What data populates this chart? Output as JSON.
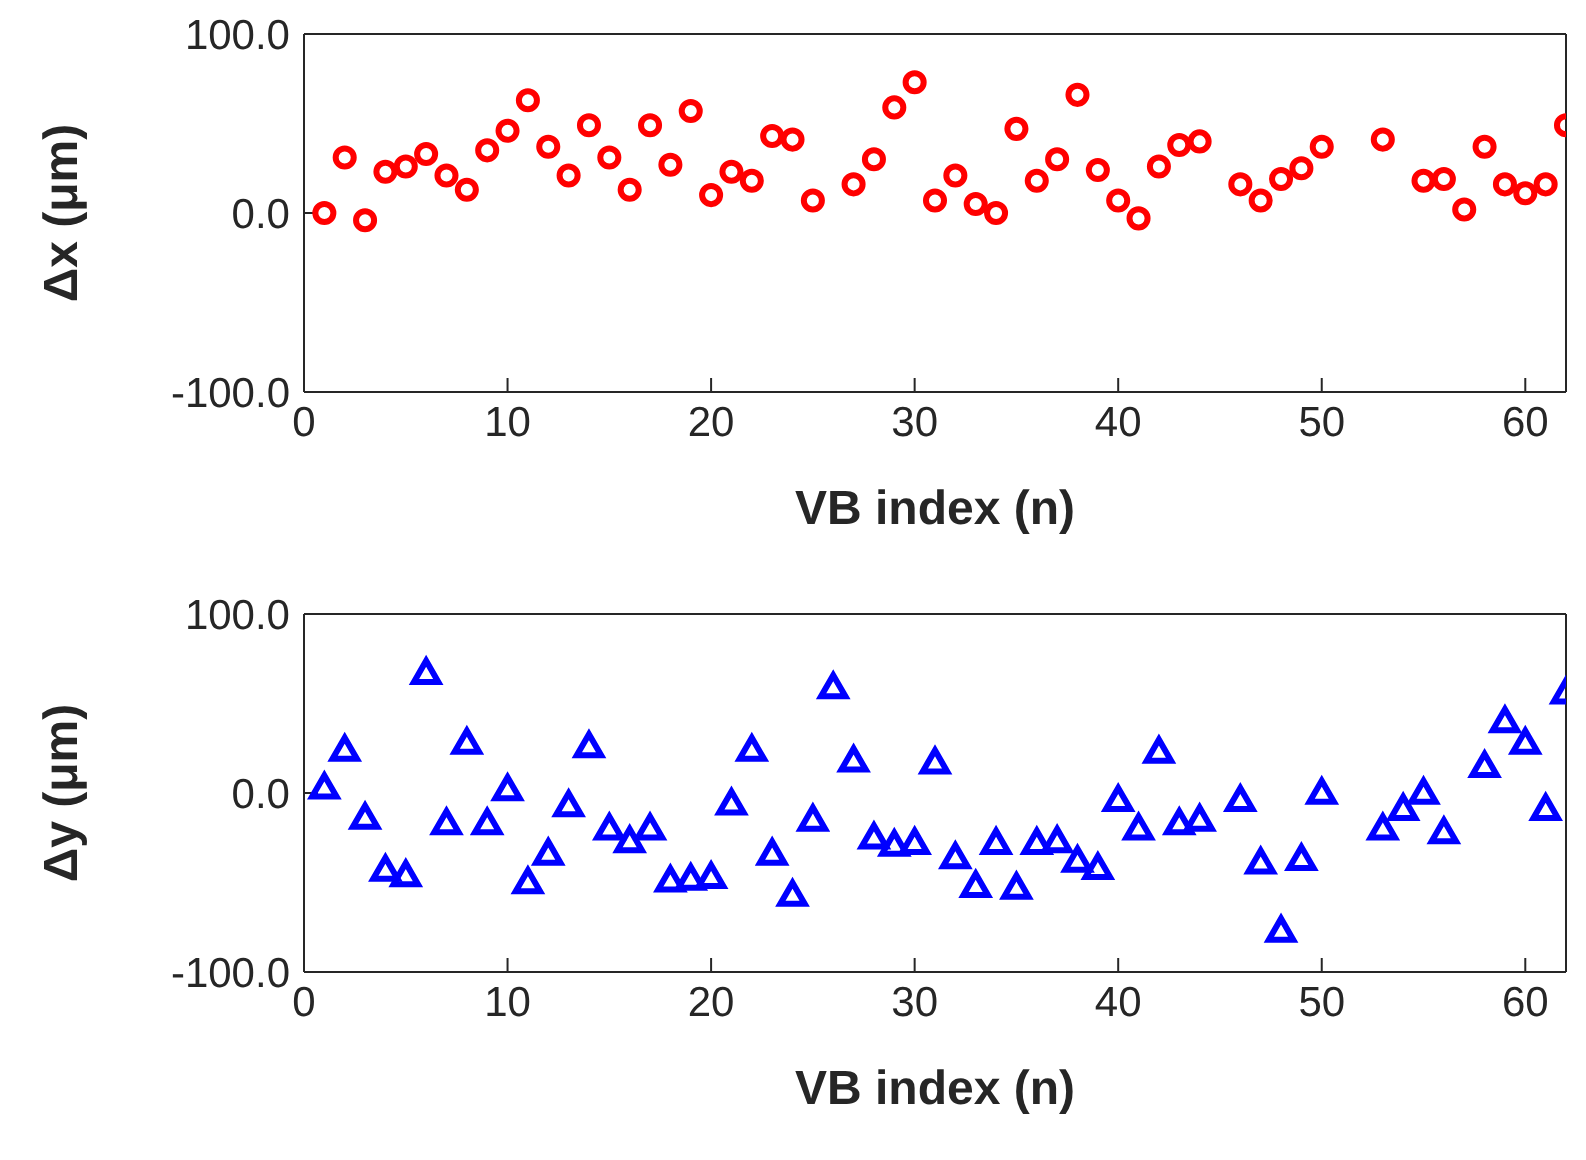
{
  "chart_data": [
    {
      "type": "scatter",
      "xlabel": "VB index (n)",
      "ylabel": "Δx (μm)",
      "xlim": [
        0,
        62
      ],
      "xticks": [
        0,
        10,
        20,
        30,
        40,
        50,
        60
      ],
      "ylim": [
        -100,
        100
      ],
      "yticks": [
        {
          "value": -100,
          "label": "-100.0"
        },
        {
          "value": 0,
          "label": "0.0"
        },
        {
          "value": 100,
          "label": "100.0"
        }
      ],
      "marker": "circle",
      "grid": false,
      "legend": false,
      "series": [
        {
          "color": "#ff0000",
          "x": [
            1,
            2,
            3,
            4,
            5,
            6,
            7,
            8,
            9,
            10,
            11,
            12,
            13,
            14,
            15,
            16,
            17,
            18,
            19,
            20,
            21,
            22,
            23,
            24,
            25,
            27,
            28,
            29,
            30,
            31,
            32,
            33,
            34,
            35,
            36,
            37,
            38,
            39,
            40,
            41,
            42,
            43,
            44,
            46,
            47,
            48,
            49,
            50,
            53,
            55,
            56,
            57,
            58,
            59,
            60,
            61,
            62
          ],
          "values": [
            0,
            31,
            -4,
            23,
            26,
            33,
            21,
            13,
            35,
            46,
            63,
            37,
            21,
            49,
            31,
            13,
            49,
            27,
            57,
            10,
            23,
            18,
            43,
            41,
            7,
            16,
            30,
            59,
            73,
            7,
            21,
            5,
            0,
            47,
            18,
            30,
            66,
            24,
            7,
            -3,
            26,
            38,
            40,
            16,
            7,
            19,
            25,
            37,
            41,
            18,
            19,
            2,
            37,
            16,
            11,
            16,
            49
          ]
        }
      ]
    },
    {
      "type": "scatter",
      "xlabel": "VB index (n)",
      "ylabel": "Δy (μm)",
      "xlim": [
        0,
        62
      ],
      "xticks": [
        0,
        10,
        20,
        30,
        40,
        50,
        60
      ],
      "ylim": [
        -100,
        100
      ],
      "yticks": [
        {
          "value": -100,
          "label": "-100.0"
        },
        {
          "value": 0,
          "label": "0.0"
        },
        {
          "value": 100,
          "label": "100.0"
        }
      ],
      "marker": "triangle",
      "grid": false,
      "legend": false,
      "series": [
        {
          "color": "#0000ff",
          "x": [
            1,
            2,
            3,
            4,
            5,
            6,
            7,
            8,
            9,
            10,
            11,
            12,
            13,
            14,
            15,
            16,
            17,
            18,
            19,
            20,
            21,
            22,
            23,
            24,
            25,
            26,
            27,
            28,
            29,
            30,
            31,
            32,
            33,
            34,
            35,
            36,
            37,
            38,
            39,
            40,
            41,
            42,
            43,
            44,
            46,
            47,
            48,
            49,
            50,
            53,
            54,
            55,
            56,
            58,
            59,
            60,
            61,
            62
          ],
          "values": [
            2,
            23,
            -15,
            -44,
            -47,
            66,
            -18,
            27,
            -18,
            1,
            -51,
            -35,
            -8,
            25,
            -21,
            -28,
            -21,
            -50,
            -49,
            -48,
            -7,
            23,
            -35,
            -58,
            -16,
            58,
            17,
            -26,
            -30,
            -29,
            16,
            -37,
            -53,
            -29,
            -54,
            -29,
            -28,
            -39,
            -43,
            -5,
            -21,
            22,
            -18,
            -16,
            -5,
            -40,
            -78,
            -38,
            -1,
            -21,
            -10,
            -1,
            -23,
            14,
            39,
            27,
            -10,
            55
          ]
        }
      ]
    }
  ]
}
